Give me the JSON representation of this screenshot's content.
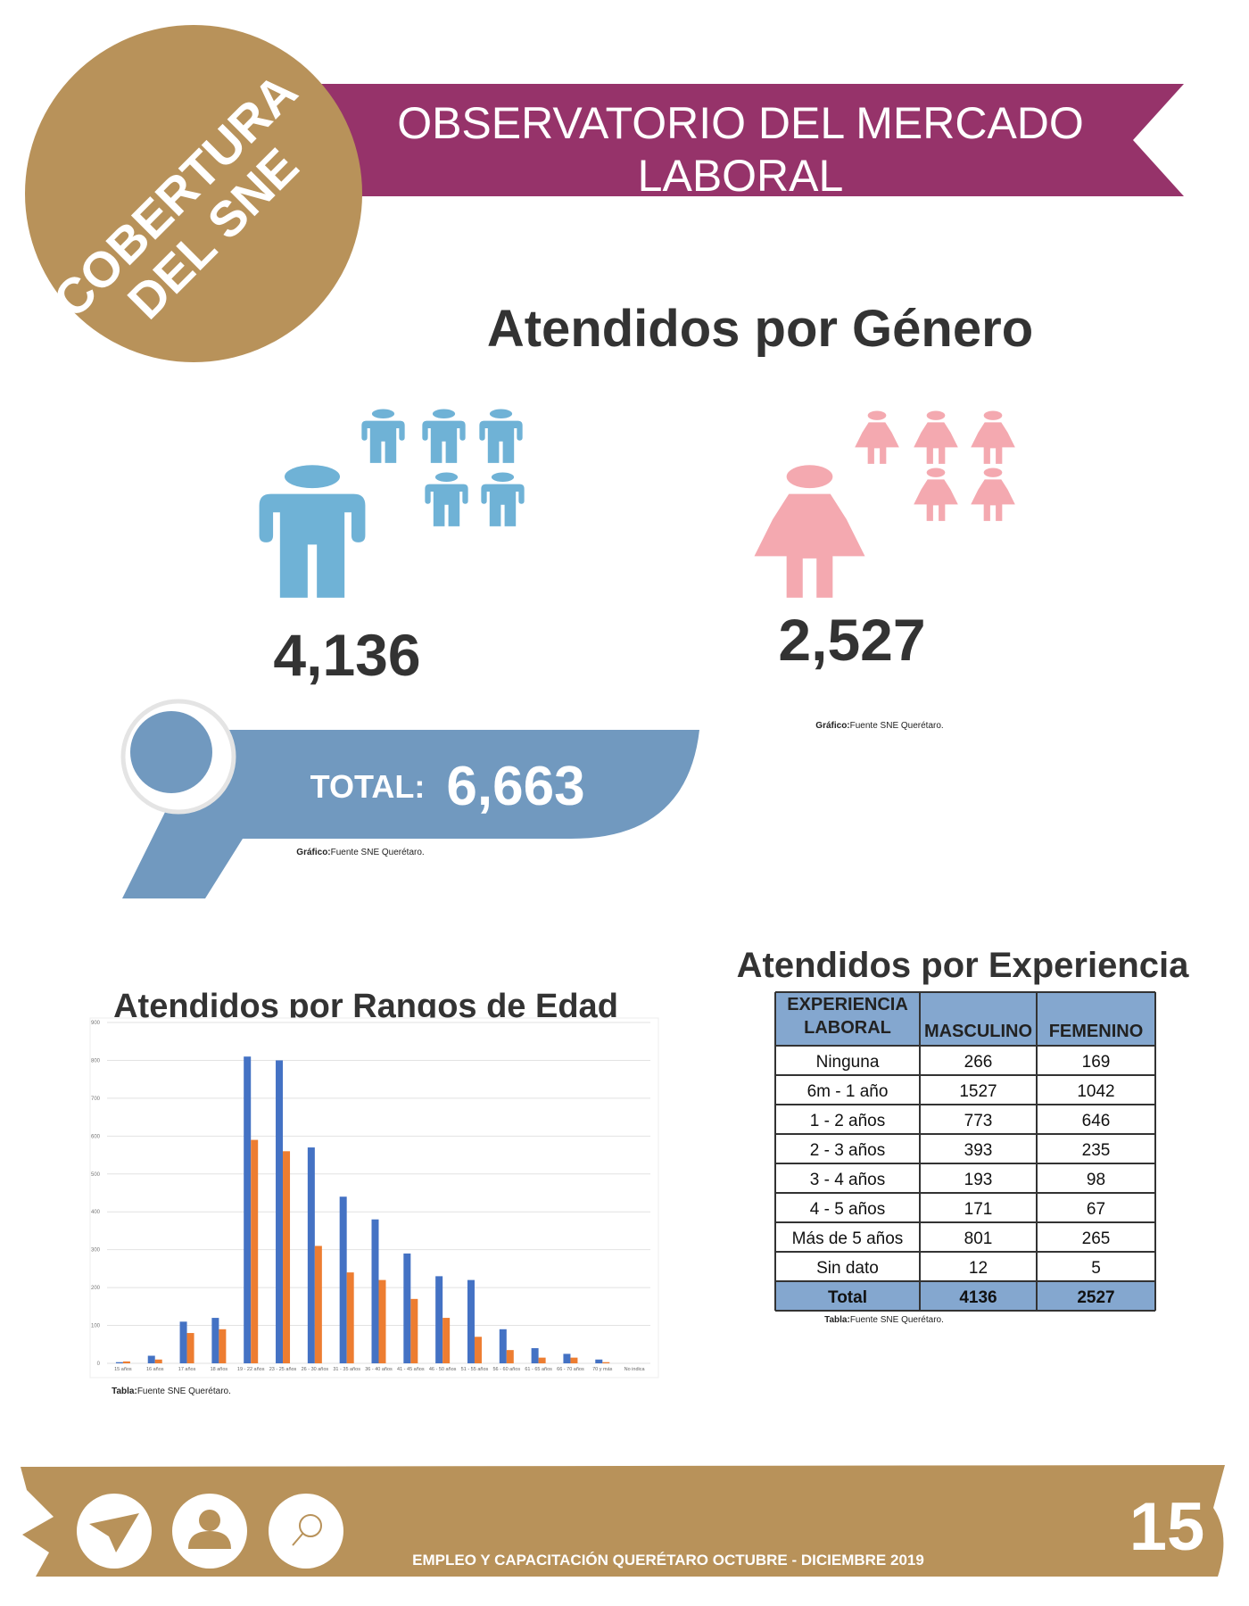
{
  "badge": [
    "COBERTURA",
    "DEL SNE"
  ],
  "header": {
    "title": [
      "OBSERVATORIO DEL MERCADO",
      "LABORAL"
    ]
  },
  "gender": {
    "title": "Atendidos por Género",
    "male": "4,136",
    "female": "2,527",
    "source": {
      "label": "Gráfico:",
      "text": "Fuente SNE Querétaro."
    }
  },
  "total": {
    "label": "TOTAL:",
    "value": "6,663",
    "source": {
      "label": "Gráfico:",
      "text": "Fuente SNE Querétaro."
    }
  },
  "experience": {
    "title": "Atendidos por Experiencia",
    "headers": [
      [
        "EXPERIENCIA",
        "LABORAL"
      ],
      [
        "MASCULINO"
      ],
      [
        "FEMENINO"
      ]
    ],
    "rows": [
      [
        "Ninguna",
        266,
        169
      ],
      [
        "6m - 1 año",
        1527,
        1042
      ],
      [
        "1 - 2 años",
        773,
        646
      ],
      [
        "2 - 3 años",
        393,
        235
      ],
      [
        "3 - 4 años",
        193,
        98
      ],
      [
        "4 - 5 años",
        171,
        67
      ],
      [
        "Más de 5 años",
        801,
        265
      ],
      [
        "Sin dato",
        12,
        5
      ]
    ],
    "total": [
      "Total",
      4136,
      2527
    ],
    "source": {
      "label": "Tabla:",
      "text": "Fuente SNE Querétaro."
    }
  },
  "chart_data": {
    "type": "bar",
    "title": "Atendidos por Rangos de Edad",
    "categories": [
      "15 años",
      "16 años",
      "17 años",
      "18 años",
      "19 - 22 años",
      "23 - 25 años",
      "26 - 30 años",
      "31 - 35 años",
      "36 - 40 años",
      "41 - 45 años",
      "46 - 50 años",
      "51 - 55 años",
      "56 - 60 años",
      "61 - 65 años",
      "66 - 70 años",
      "70 y más",
      "No indica"
    ],
    "series": [
      {
        "color": "#4472c4",
        "values": [
          3,
          20,
          110,
          120,
          810,
          800,
          570,
          440,
          380,
          290,
          230,
          220,
          90,
          40,
          25,
          10,
          0
        ]
      },
      {
        "color": "#ed7d31",
        "values": [
          5,
          10,
          80,
          90,
          590,
          560,
          310,
          240,
          220,
          170,
          120,
          70,
          35,
          15,
          15,
          3,
          0
        ]
      }
    ],
    "ylim": [
      0,
      900
    ],
    "yticks": [
      0,
      100,
      200,
      300,
      400,
      500,
      600,
      700,
      800,
      900
    ],
    "grid": true
  },
  "chart_source": {
    "label": "Tabla:",
    "text": "Fuente SNE Querétaro."
  },
  "footer": {
    "text": "EMPLEO Y CAPACITACIÓN QUERÉTARO OCTUBRE - DICIEMBRE 2019",
    "page": "15"
  }
}
